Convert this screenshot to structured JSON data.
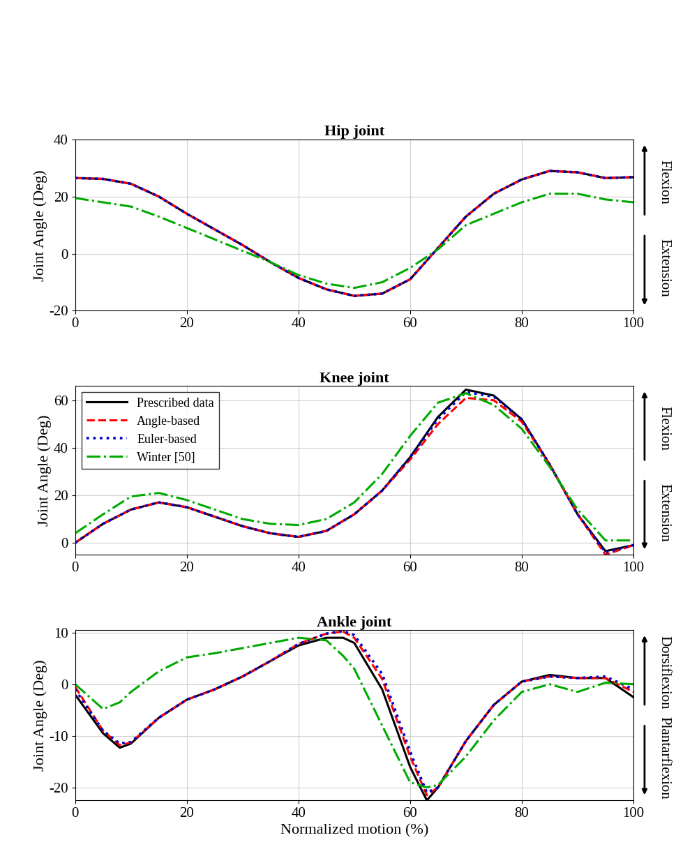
{
  "chart_data": [
    {
      "type": "line",
      "title": "Hip joint",
      "y_label": "Joint Angle (Deg)",
      "annotations": [
        "Flexion",
        "Extension"
      ],
      "x": [
        0,
        5,
        10,
        15,
        20,
        25,
        30,
        35,
        40,
        45,
        50,
        55,
        60,
        65,
        70,
        75,
        80,
        85,
        90,
        95,
        100
      ],
      "xlim": [
        0,
        100
      ],
      "xticks": [
        0,
        20,
        40,
        60,
        80,
        100
      ],
      "ylim": [
        -20,
        40
      ],
      "yticks": [
        -20,
        0,
        20,
        40
      ],
      "grid": true,
      "series": [
        {
          "name": "Prescribed data",
          "color": "#000000",
          "line_style": "solid",
          "values": [
            26.5,
            26.2,
            24.5,
            20,
            14,
            8.5,
            3,
            -3,
            -8.5,
            -12.5,
            -14.8,
            -14,
            -9,
            2,
            13,
            21,
            26,
            29,
            28.5,
            26.5,
            26.8
          ]
        },
        {
          "name": "Angle-based",
          "color": "#ff0000",
          "line_style": "dashed",
          "values": [
            26.5,
            26.2,
            24.5,
            20,
            14,
            8.5,
            3,
            -3,
            -8.5,
            -12.5,
            -14.8,
            -14,
            -9,
            2,
            13,
            21,
            26,
            29,
            28.5,
            26.5,
            26.8
          ]
        },
        {
          "name": "Euler-based",
          "color": "#0000cc",
          "line_style": "dotted",
          "values": [
            26.5,
            26.2,
            24.5,
            20,
            14,
            8.5,
            3,
            -3,
            -8.5,
            -12.5,
            -14.8,
            -14,
            -9,
            2,
            13,
            21,
            26,
            29,
            28.5,
            26.5,
            26.8
          ]
        },
        {
          "name": "Winter [50]",
          "color": "#00aa00",
          "line_style": "dashdot",
          "values": [
            19.5,
            18,
            16.5,
            13,
            9,
            5,
            1,
            -3,
            -7.5,
            -10.5,
            -12,
            -10,
            -5,
            1.5,
            10,
            14,
            18,
            21,
            21,
            19,
            18
          ]
        }
      ]
    },
    {
      "type": "line",
      "title": "Knee joint",
      "y_label": "Joint Angle (Deg)",
      "annotations": [
        "Flexion",
        "Extension"
      ],
      "legend": "upper left",
      "x": [
        0,
        5,
        10,
        15,
        20,
        25,
        30,
        35,
        40,
        45,
        50,
        55,
        60,
        65,
        70,
        75,
        80,
        85,
        90,
        95,
        100
      ],
      "xlim": [
        0,
        100
      ],
      "xticks": [
        0,
        20,
        40,
        60,
        80,
        100
      ],
      "ylim": [
        -5,
        66
      ],
      "yticks": [
        0,
        20,
        40,
        60
      ],
      "grid": true,
      "series": [
        {
          "name": "Prescribed data",
          "color": "#000000",
          "line_style": "solid",
          "values": [
            0,
            8,
            14,
            17,
            15,
            11,
            7,
            4,
            2.5,
            5,
            12,
            22,
            36,
            53,
            64.5,
            62,
            52,
            33,
            12,
            -3.5,
            -1
          ]
        },
        {
          "name": "Angle-based",
          "color": "#ff0000",
          "line_style": "dashed",
          "values": [
            0,
            8,
            14,
            17,
            15,
            11,
            7,
            4,
            2.5,
            5,
            12,
            22,
            35,
            50,
            61,
            60,
            51,
            33,
            12,
            -5,
            -1
          ]
        },
        {
          "name": "Euler-based",
          "color": "#0000cc",
          "line_style": "dotted",
          "values": [
            0,
            8,
            14,
            17,
            15,
            11,
            7,
            4,
            2.5,
            5,
            12,
            22,
            36,
            52,
            63.5,
            61.5,
            52,
            33,
            12,
            -4,
            -1
          ]
        },
        {
          "name": "Winter [50]",
          "color": "#00aa00",
          "line_style": "dashdot",
          "values": [
            4,
            12,
            19.5,
            21,
            18,
            14,
            10,
            8,
            7.5,
            10,
            17,
            29,
            45,
            59,
            63,
            58,
            48,
            32,
            14,
            1,
            1
          ]
        }
      ]
    },
    {
      "type": "line",
      "title": "Ankle joint",
      "y_label": "Joint Angle (Deg)",
      "x_label": "Normalized motion (%)",
      "annotations": [
        "Dorsiflexion",
        "Plantarflexion"
      ],
      "x": [
        0,
        5,
        8,
        10,
        15,
        20,
        25,
        30,
        35,
        40,
        45,
        48,
        50,
        55,
        60,
        63,
        65,
        70,
        75,
        80,
        85,
        90,
        95,
        100
      ],
      "xlim": [
        0,
        100
      ],
      "xticks": [
        0,
        20,
        40,
        60,
        80,
        100
      ],
      "ylim": [
        -22.5,
        10.5
      ],
      "yticks": [
        -20,
        -10,
        0,
        10
      ],
      "grid": true,
      "series": [
        {
          "name": "Prescribed data",
          "color": "#000000",
          "line_style": "solid",
          "values": [
            -2,
            -9.5,
            -12.3,
            -11.5,
            -6.5,
            -3,
            -1,
            1.5,
            4.5,
            7.5,
            9,
            9,
            8,
            -1,
            -16,
            -22.5,
            -20,
            -11,
            -4,
            0.5,
            1.8,
            1.2,
            1.2,
            -2.5
          ]
        },
        {
          "name": "Angle-based",
          "color": "#ff0000",
          "line_style": "dashed",
          "values": [
            -0.5,
            -9,
            -11.8,
            -11.3,
            -6.5,
            -3,
            -1,
            1.5,
            4.5,
            7.8,
            9.8,
            10.2,
            9,
            1,
            -14,
            -21.5,
            -20,
            -11,
            -4,
            0.5,
            1.5,
            1.2,
            1.2,
            -1.5
          ]
        },
        {
          "name": "Euler-based",
          "color": "#0000cc",
          "line_style": "dotted",
          "values": [
            -1,
            -9,
            -11.5,
            -11.2,
            -6.5,
            -3,
            -1,
            1.5,
            4.5,
            7.8,
            9.8,
            10.3,
            9.5,
            2,
            -13,
            -21,
            -20,
            -11,
            -4,
            0.5,
            1.5,
            1.2,
            1.5,
            -1
          ]
        },
        {
          "name": "Winter [50]",
          "color": "#00aa00",
          "line_style": "dashdot",
          "values": [
            0,
            -4.8,
            -3.5,
            -1.5,
            2.5,
            5.2,
            6,
            7,
            8,
            9,
            8.5,
            5.5,
            3,
            -8,
            -19,
            -20,
            -19.5,
            -14,
            -7,
            -1.5,
            0,
            -1.5,
            0.3,
            0
          ]
        }
      ]
    }
  ]
}
